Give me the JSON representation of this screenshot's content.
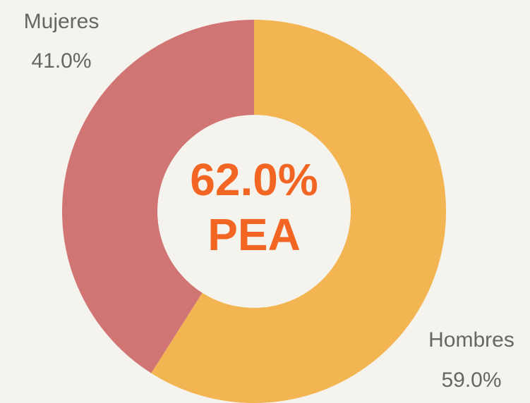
{
  "chart_data": {
    "type": "pie",
    "categories": [
      "Hombres",
      "Mujeres"
    ],
    "values": [
      59,
      41
    ],
    "value_labels": [
      "59.0%",
      "41.0%"
    ],
    "colors": [
      "#f2b552",
      "#d17574"
    ],
    "donut": true,
    "center_text": [
      "62.0%",
      "PEA"
    ]
  }
}
